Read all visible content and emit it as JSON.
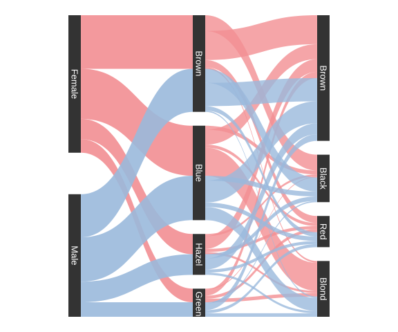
{
  "chart_data": {
    "type": "sankey",
    "title": "",
    "stages": [
      [
        "Female",
        "Male"
      ],
      [
        "Brown",
        "Blue",
        "Hazel",
        "Green"
      ],
      [
        "Brown",
        "Black",
        "Red",
        "Blond"
      ]
    ],
    "node_labels": {
      "Female": "Female",
      "Male": "Male",
      "Brown": "Brown",
      "Blue": "Blue",
      "Hazel": "Hazel",
      "Green": "Green",
      "Black": "Black",
      "Red": "Red",
      "Blond": "Blond"
    },
    "sex_colors": {
      "Female": "#f28e92",
      "Male": "#9ab9dc"
    },
    "sex_to_eye": [
      {
        "sex": "Female",
        "eye": "Brown",
        "value": 122
      },
      {
        "sex": "Female",
        "eye": "Blue",
        "value": 114
      },
      {
        "sex": "Female",
        "eye": "Hazel",
        "value": 46
      },
      {
        "sex": "Female",
        "eye": "Green",
        "value": 31
      },
      {
        "sex": "Male",
        "eye": "Brown",
        "value": 98
      },
      {
        "sex": "Male",
        "eye": "Blue",
        "value": 101
      },
      {
        "sex": "Male",
        "eye": "Hazel",
        "value": 47
      },
      {
        "sex": "Male",
        "eye": "Green",
        "value": 33
      }
    ],
    "eye_to_hair": [
      {
        "sex": "Female",
        "eye": "Brown",
        "hair": "Black",
        "value": 36
      },
      {
        "sex": "Female",
        "eye": "Brown",
        "hair": "Brown",
        "value": 66
      },
      {
        "sex": "Female",
        "eye": "Brown",
        "hair": "Red",
        "value": 16
      },
      {
        "sex": "Female",
        "eye": "Brown",
        "hair": "Blond",
        "value": 4
      },
      {
        "sex": "Female",
        "eye": "Blue",
        "hair": "Black",
        "value": 9
      },
      {
        "sex": "Female",
        "eye": "Blue",
        "hair": "Brown",
        "value": 34
      },
      {
        "sex": "Female",
        "eye": "Blue",
        "hair": "Red",
        "value": 7
      },
      {
        "sex": "Female",
        "eye": "Blue",
        "hair": "Blond",
        "value": 64
      },
      {
        "sex": "Female",
        "eye": "Hazel",
        "hair": "Black",
        "value": 5
      },
      {
        "sex": "Female",
        "eye": "Hazel",
        "hair": "Brown",
        "value": 29
      },
      {
        "sex": "Female",
        "eye": "Hazel",
        "hair": "Red",
        "value": 7
      },
      {
        "sex": "Female",
        "eye": "Hazel",
        "hair": "Blond",
        "value": 5
      },
      {
        "sex": "Female",
        "eye": "Green",
        "hair": "Black",
        "value": 2
      },
      {
        "sex": "Female",
        "eye": "Green",
        "hair": "Brown",
        "value": 14
      },
      {
        "sex": "Female",
        "eye": "Green",
        "hair": "Red",
        "value": 7
      },
      {
        "sex": "Female",
        "eye": "Green",
        "hair": "Blond",
        "value": 8
      },
      {
        "sex": "Male",
        "eye": "Brown",
        "hair": "Black",
        "value": 32
      },
      {
        "sex": "Male",
        "eye": "Brown",
        "hair": "Brown",
        "value": 53
      },
      {
        "sex": "Male",
        "eye": "Brown",
        "hair": "Red",
        "value": 10
      },
      {
        "sex": "Male",
        "eye": "Brown",
        "hair": "Blond",
        "value": 3
      },
      {
        "sex": "Male",
        "eye": "Blue",
        "hair": "Black",
        "value": 11
      },
      {
        "sex": "Male",
        "eye": "Blue",
        "hair": "Brown",
        "value": 50
      },
      {
        "sex": "Male",
        "eye": "Blue",
        "hair": "Red",
        "value": 10
      },
      {
        "sex": "Male",
        "eye": "Blue",
        "hair": "Blond",
        "value": 30
      },
      {
        "sex": "Male",
        "eye": "Hazel",
        "hair": "Black",
        "value": 10
      },
      {
        "sex": "Male",
        "eye": "Hazel",
        "hair": "Brown",
        "value": 25
      },
      {
        "sex": "Male",
        "eye": "Hazel",
        "hair": "Red",
        "value": 7
      },
      {
        "sex": "Male",
        "eye": "Hazel",
        "hair": "Blond",
        "value": 5
      },
      {
        "sex": "Male",
        "eye": "Green",
        "hair": "Black",
        "value": 3
      },
      {
        "sex": "Male",
        "eye": "Green",
        "hair": "Brown",
        "value": 15
      },
      {
        "sex": "Male",
        "eye": "Green",
        "hair": "Red",
        "value": 7
      },
      {
        "sex": "Male",
        "eye": "Green",
        "hair": "Blond",
        "value": 8
      }
    ],
    "legend": "none",
    "grid": false,
    "node_color": "#333333"
  }
}
